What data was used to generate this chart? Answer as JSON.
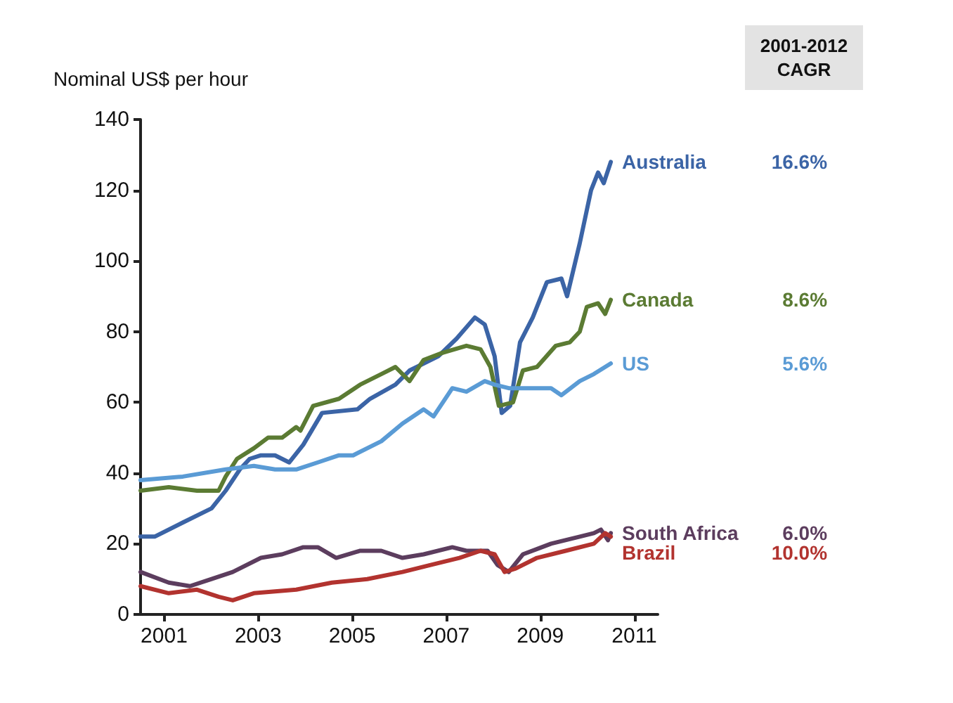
{
  "chart_data": {
    "type": "line",
    "ylabel": "Nominal US$ per hour",
    "xlim": [
      2001,
      2012
    ],
    "xticks": [
      {
        "value": 2001.5,
        "label": "2001"
      },
      {
        "value": 2003.5,
        "label": "2003"
      },
      {
        "value": 2005.5,
        "label": "2005"
      },
      {
        "value": 2007.5,
        "label": "2007"
      },
      {
        "value": 2009.5,
        "label": "2009"
      },
      {
        "value": 2011.5,
        "label": "2011"
      }
    ],
    "ylim": [
      0,
      140
    ],
    "yticks": [
      0,
      20,
      40,
      60,
      80,
      100,
      120,
      140
    ],
    "grid": false,
    "legend": false,
    "marker": "none",
    "line_style": "solid",
    "annotations": [
      "2001-2012 CAGR",
      "16.6%",
      "8.6%",
      "5.6%",
      "6.0%",
      "10.0%"
    ],
    "series": [
      {
        "name": "Australia",
        "color": "#3b64a6",
        "x": [
          2001,
          2001.3,
          2001.9,
          2002.51,
          2002.81,
          2003.11,
          2003.32,
          2003.56,
          2003.86,
          2004.16,
          2004.46,
          2004.86,
          2005.61,
          2005.88,
          2006.42,
          2006.72,
          2007.33,
          2007.72,
          2008.11,
          2008.32,
          2008.53,
          2008.68,
          2008.86,
          2009.07,
          2009.34,
          2009.64,
          2009.95,
          2010.07,
          2010.34,
          2010.58,
          2010.73,
          2010.85,
          2011.0
        ],
        "values": [
          22,
          22,
          26,
          30,
          35,
          41,
          44,
          45,
          45,
          43,
          48,
          57,
          58,
          61,
          65,
          69,
          73,
          78,
          84,
          82,
          73,
          57,
          59,
          77,
          84,
          94,
          95,
          90,
          105,
          120,
          125,
          122,
          128
        ]
      },
      {
        "name": "Canada",
        "color": "#5b7b33",
        "x": [
          2001,
          2001.6,
          2002.2,
          2002.66,
          2002.81,
          2003.05,
          2003.41,
          2003.71,
          2004.01,
          2004.31,
          2004.4,
          2004.67,
          2005.22,
          2005.67,
          2006.12,
          2006.42,
          2006.72,
          2007.02,
          2007.42,
          2007.93,
          2008.23,
          2008.44,
          2008.62,
          2008.92,
          2009.13,
          2009.43,
          2009.83,
          2010.13,
          2010.34,
          2010.49,
          2010.73,
          2010.88,
          2011.0
        ],
        "values": [
          35,
          36,
          35,
          35,
          39,
          44,
          47,
          50,
          50,
          53,
          52,
          59,
          61,
          65,
          68,
          70,
          66,
          72,
          74,
          76,
          75,
          70,
          59,
          60,
          69,
          70,
          76,
          77,
          80,
          87,
          88,
          85,
          89
        ]
      },
      {
        "name": "US",
        "color": "#5a9bd5",
        "x": [
          2001,
          2001.9,
          2002.81,
          2003.41,
          2003.86,
          2004.31,
          2004.77,
          2005.22,
          2005.52,
          2006.12,
          2006.57,
          2007.02,
          2007.23,
          2007.63,
          2007.93,
          2008.32,
          2008.53,
          2008.83,
          2009.22,
          2009.73,
          2009.95,
          2010.34,
          2010.64,
          2011.0
        ],
        "values": [
          38,
          39,
          41,
          42,
          41,
          41,
          43,
          45,
          45,
          49,
          54,
          58,
          56,
          64,
          63,
          66,
          65,
          64,
          64,
          64,
          62,
          66,
          68,
          71
        ]
      },
      {
        "name": "South Africa",
        "color": "#5c3d5e",
        "x": [
          2001,
          2001.6,
          2002.05,
          2002.51,
          2002.96,
          2003.56,
          2004.01,
          2004.46,
          2004.77,
          2005.16,
          2005.67,
          2006.12,
          2006.57,
          2007.02,
          2007.63,
          2007.93,
          2008.38,
          2008.59,
          2008.83,
          2009.13,
          2009.73,
          2010.34,
          2010.64,
          2010.79,
          2010.94,
          2011.0
        ],
        "values": [
          12,
          9,
          8,
          10,
          12,
          16,
          17,
          19,
          19,
          16,
          18,
          18,
          16,
          17,
          19,
          18,
          18,
          14,
          12,
          17,
          20,
          22,
          23,
          24,
          21,
          23
        ]
      },
      {
        "name": "Brazil",
        "color": "#b2332f",
        "x": [
          2001,
          2001.6,
          2002.2,
          2002.66,
          2002.96,
          2003.41,
          2004.31,
          2005.07,
          2005.82,
          2006.57,
          2007.17,
          2007.78,
          2008.23,
          2008.53,
          2008.74,
          2008.98,
          2009.43,
          2010.04,
          2010.64,
          2010.88,
          2011.0
        ],
        "values": [
          8,
          6,
          7,
          5,
          4,
          6,
          7,
          9,
          10,
          12,
          14,
          16,
          18,
          17,
          12,
          13,
          16,
          18,
          20,
          23,
          22
        ]
      }
    ]
  }
}
